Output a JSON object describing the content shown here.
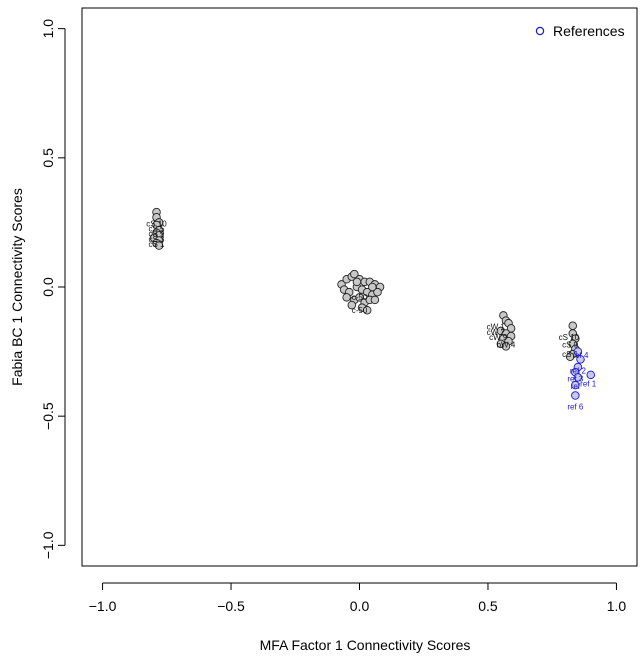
{
  "chart_data": {
    "type": "scatter",
    "xlabel": "MFA Factor 1 Connectivity Scores",
    "ylabel": "Fabia BC 1 Connectivity Scores",
    "xlim": [
      -1.08,
      1.08
    ],
    "ylim": [
      -1.08,
      1.08
    ],
    "xticks": [
      -1.0,
      -0.5,
      0.0,
      0.5,
      1.0
    ],
    "yticks": [
      -1.0,
      -0.5,
      0.0,
      0.5,
      1.0
    ],
    "xtick_labels": [
      "−1.0",
      "−0.5",
      "0.0",
      "0.5",
      "1.0"
    ],
    "ytick_labels": [
      "−1.0",
      "−0.5",
      "0.0",
      "0.5",
      "1.0"
    ],
    "grid": false,
    "legend": {
      "position": "top-right",
      "entries": [
        {
          "label": "References",
          "color": "#1a1acc",
          "marker": "open-circle"
        }
      ]
    },
    "colors": {
      "compound_fill": "#c8c8c8",
      "compound_edge": "#222222",
      "reference": "#1a1acc"
    },
    "series": [
      {
        "group": "cluster-1",
        "points": [
          {
            "x": -0.79,
            "y": 0.29
          },
          {
            "x": -0.79,
            "y": 0.27
          },
          {
            "x": -0.78,
            "y": 0.25
          },
          {
            "x": -0.79,
            "y": 0.24
          },
          {
            "x": -0.78,
            "y": 0.22
          },
          {
            "x": -0.79,
            "y": 0.21
          },
          {
            "x": -0.78,
            "y": 0.2
          },
          {
            "x": -0.8,
            "y": 0.19
          },
          {
            "x": -0.78,
            "y": 0.18
          },
          {
            "x": -0.79,
            "y": 0.17
          },
          {
            "x": -0.78,
            "y": 0.16
          }
        ],
        "labels": [
          {
            "x": -0.79,
            "y": 0.235,
            "text": "cS 10"
          },
          {
            "x": -0.79,
            "y": 0.215,
            "text": "cS 5"
          },
          {
            "x": -0.79,
            "y": 0.195,
            "text": "cS 9"
          },
          {
            "x": -0.79,
            "y": 0.175,
            "text": "cS 3"
          },
          {
            "x": -0.79,
            "y": 0.155,
            "text": "cS 1"
          }
        ]
      },
      {
        "group": "cluster-2",
        "points": [
          {
            "x": -0.07,
            "y": 0.01
          },
          {
            "x": -0.05,
            "y": 0.03
          },
          {
            "x": -0.03,
            "y": 0.04
          },
          {
            "x": -0.02,
            "y": 0.05
          },
          {
            "x": 0.0,
            "y": 0.03
          },
          {
            "x": 0.02,
            "y": 0.02
          },
          {
            "x": 0.04,
            "y": 0.02
          },
          {
            "x": 0.06,
            "y": 0.01
          },
          {
            "x": 0.08,
            "y": 0.0
          },
          {
            "x": -0.06,
            "y": -0.01
          },
          {
            "x": -0.04,
            "y": -0.02
          },
          {
            "x": -0.01,
            "y": 0.0
          },
          {
            "x": 0.01,
            "y": -0.01
          },
          {
            "x": 0.03,
            "y": -0.02
          },
          {
            "x": 0.05,
            "y": -0.03
          },
          {
            "x": 0.07,
            "y": -0.02
          },
          {
            "x": -0.05,
            "y": -0.04
          },
          {
            "x": -0.02,
            "y": -0.05
          },
          {
            "x": 0.0,
            "y": -0.04
          },
          {
            "x": 0.02,
            "y": -0.06
          },
          {
            "x": 0.04,
            "y": -0.05
          },
          {
            "x": 0.06,
            "y": -0.05
          },
          {
            "x": -0.03,
            "y": -0.07
          },
          {
            "x": 0.01,
            "y": -0.08
          },
          {
            "x": 0.03,
            "y": -0.09
          },
          {
            "x": -0.01,
            "y": 0.02
          },
          {
            "x": 0.05,
            "y": 0.0
          }
        ],
        "labels": [
          {
            "x": 0.0,
            "y": -0.05,
            "text": "c-50"
          },
          {
            "x": 0.0,
            "y": -0.1,
            "text": "c-50"
          }
        ]
      },
      {
        "group": "cluster-3",
        "points": [
          {
            "x": 0.56,
            "y": -0.11
          },
          {
            "x": 0.57,
            "y": -0.13
          },
          {
            "x": 0.58,
            "y": -0.14
          },
          {
            "x": 0.59,
            "y": -0.16
          },
          {
            "x": 0.55,
            "y": -0.17
          },
          {
            "x": 0.57,
            "y": -0.18
          },
          {
            "x": 0.59,
            "y": -0.19
          },
          {
            "x": 0.56,
            "y": -0.2
          },
          {
            "x": 0.58,
            "y": -0.21
          },
          {
            "x": 0.55,
            "y": -0.22
          },
          {
            "x": 0.57,
            "y": -0.23
          }
        ],
        "labels": [
          {
            "x": 0.53,
            "y": -0.165,
            "text": "cW 1"
          },
          {
            "x": 0.53,
            "y": -0.185,
            "text": "cW 2"
          },
          {
            "x": 0.54,
            "y": -0.205,
            "text": "cW 9"
          },
          {
            "x": 0.57,
            "y": -0.235,
            "text": "bW 4"
          }
        ]
      },
      {
        "group": "cluster-4",
        "points": [
          {
            "x": 0.83,
            "y": -0.15
          },
          {
            "x": 0.83,
            "y": -0.18
          },
          {
            "x": 0.84,
            "y": -0.2
          },
          {
            "x": 0.83,
            "y": -0.22
          },
          {
            "x": 0.84,
            "y": -0.24
          },
          {
            "x": 0.83,
            "y": -0.26
          },
          {
            "x": 0.82,
            "y": -0.27
          }
        ],
        "labels": [
          {
            "x": 0.815,
            "y": -0.205,
            "text": "cS 10"
          },
          {
            "x": 0.82,
            "y": -0.235,
            "text": "cS 9"
          },
          {
            "x": 0.82,
            "y": -0.27,
            "text": "cS 1"
          }
        ]
      },
      {
        "group": "references",
        "marker": "open-circle",
        "points": [
          {
            "x": 0.85,
            "y": -0.25
          },
          {
            "x": 0.86,
            "y": -0.28
          },
          {
            "x": 0.85,
            "y": -0.31
          },
          {
            "x": 0.84,
            "y": -0.33
          },
          {
            "x": 0.9,
            "y": -0.34
          },
          {
            "x": 0.85,
            "y": -0.35
          },
          {
            "x": 0.84,
            "y": -0.38
          },
          {
            "x": 0.84,
            "y": -0.42
          }
        ],
        "labels": [
          {
            "x": 0.86,
            "y": -0.275,
            "text": "ref 4"
          },
          {
            "x": 0.85,
            "y": -0.335,
            "text": "ref 2"
          },
          {
            "x": 0.84,
            "y": -0.365,
            "text": "ref 3"
          },
          {
            "x": 0.89,
            "y": -0.385,
            "text": "ref 1"
          },
          {
            "x": 0.84,
            "y": -0.395,
            "text": "ref"
          },
          {
            "x": 0.84,
            "y": -0.475,
            "text": "ref 6"
          }
        ]
      }
    ]
  }
}
